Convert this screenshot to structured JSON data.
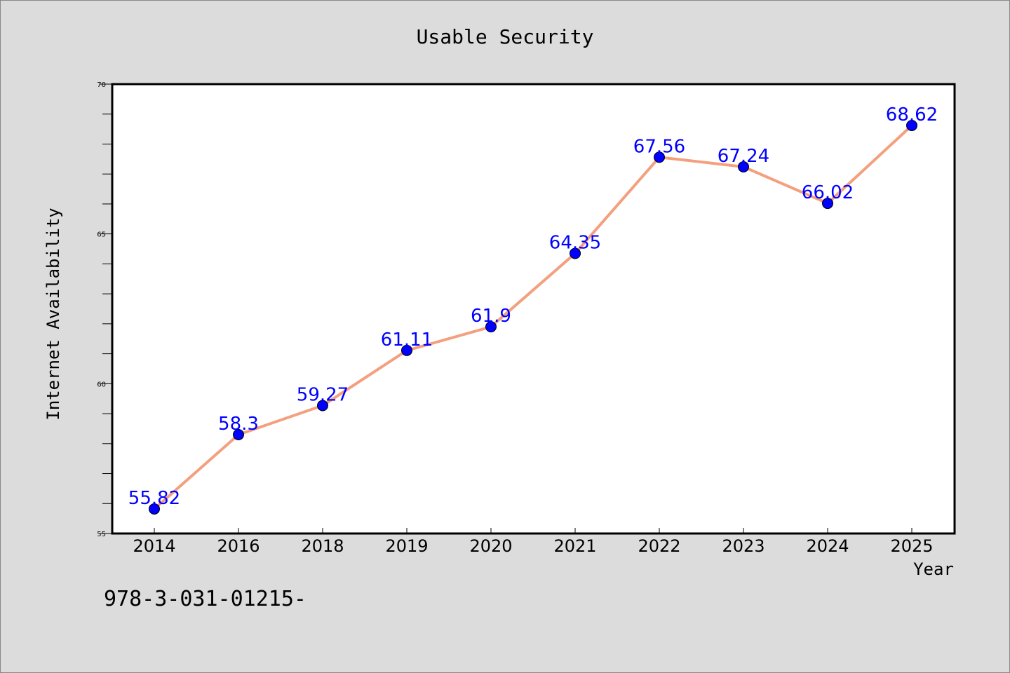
{
  "chart_data": {
    "type": "line",
    "title": "Usable Security",
    "xlabel": "Year",
    "ylabel": "Internet Availability",
    "categories": [
      "2014",
      "2016",
      "2018",
      "2019",
      "2020",
      "2021",
      "2022",
      "2023",
      "2024",
      "2025"
    ],
    "series": [
      {
        "values": [
          55.82,
          58.3,
          59.27,
          61.11,
          61.9,
          64.35,
          67.56,
          67.24,
          66.02,
          68.62
        ],
        "labels": [
          "55.82",
          "58.3",
          "59.27",
          "61.11",
          "61.9",
          "64.35",
          "67.56",
          "67.24",
          "66.02",
          "68.62"
        ],
        "line_color": "#f4a07f",
        "marker_color": "#0000ff"
      }
    ],
    "ylim": [
      55,
      70
    ],
    "yticks": [
      55,
      60,
      65,
      70
    ],
    "grid": false,
    "legend": "none"
  },
  "footnote": "978-3-031-01215-",
  "colors": {
    "background": "#dcdcdc",
    "plot_area": "#ffffff",
    "line": "#f4a07f",
    "marker": "#0000ff",
    "data_label": "#0000ff"
  }
}
